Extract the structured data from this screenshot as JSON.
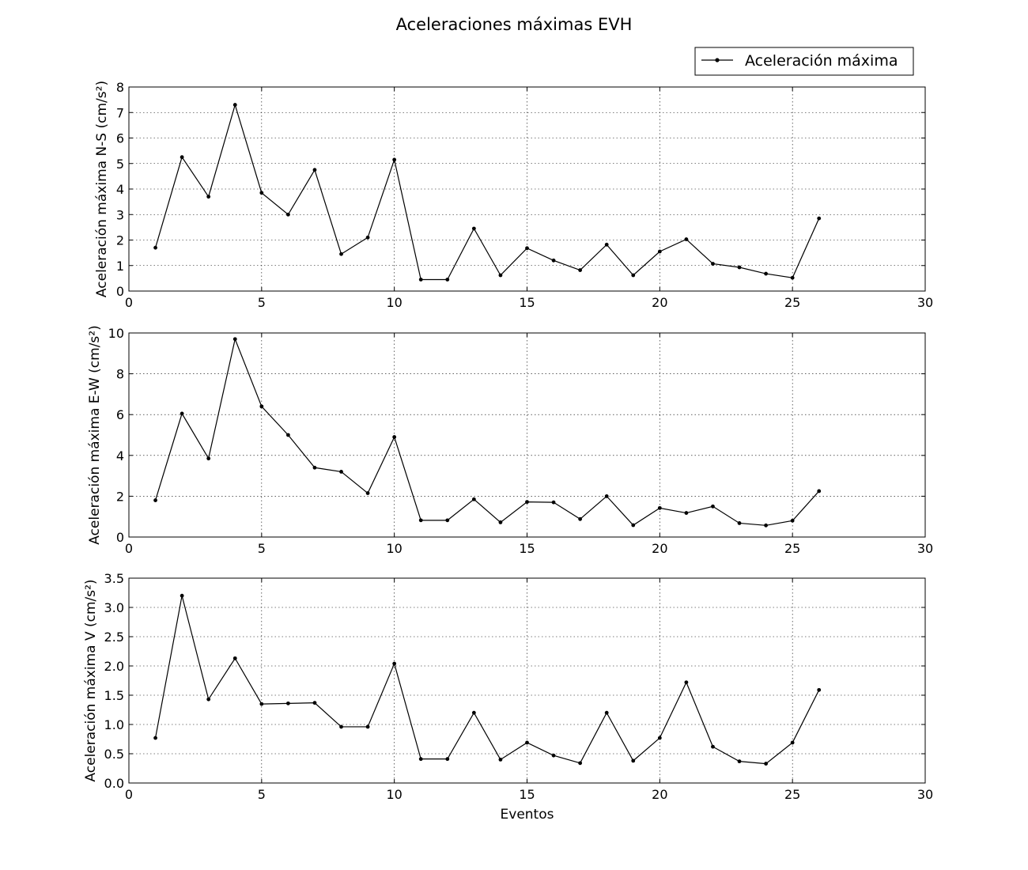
{
  "figure": {
    "title": "Aceleraciones máximas EVH",
    "legend": {
      "label": "Aceleración máxima",
      "placement": "upper-right"
    },
    "line_color": "#000000"
  },
  "chart_data": [
    {
      "type": "line",
      "ylabel": "Aceleración máxima N-S (cm/s²)",
      "xlabel": "",
      "xlim": [
        0,
        30
      ],
      "ylim": [
        0,
        8
      ],
      "xticks": [
        0,
        5,
        10,
        15,
        20,
        25,
        30
      ],
      "yticks": [
        0,
        1,
        2,
        3,
        4,
        5,
        6,
        7,
        8
      ],
      "ytick_labels": [
        "0",
        "1",
        "2",
        "3",
        "4",
        "5",
        "6",
        "7",
        "8"
      ],
      "grid": true,
      "x": [
        1,
        2,
        3,
        4,
        5,
        6,
        7,
        8,
        9,
        10,
        11,
        12,
        13,
        14,
        15,
        16,
        17,
        18,
        19,
        20,
        21,
        22,
        23,
        24,
        25,
        26
      ],
      "series": [
        {
          "name": "Aceleración máxima",
          "values": [
            1.7,
            5.25,
            3.7,
            7.3,
            3.85,
            3.0,
            4.75,
            1.45,
            2.1,
            5.15,
            0.45,
            0.45,
            2.45,
            0.62,
            1.68,
            1.2,
            0.82,
            1.82,
            0.62,
            1.55,
            2.03,
            1.07,
            0.93,
            0.68,
            0.52,
            2.85
          ]
        }
      ]
    },
    {
      "type": "line",
      "ylabel": "Aceleración máxima E-W (cm/s²)",
      "xlabel": "",
      "xlim": [
        0,
        30
      ],
      "ylim": [
        0,
        10
      ],
      "xticks": [
        0,
        5,
        10,
        15,
        20,
        25,
        30
      ],
      "yticks": [
        0,
        2,
        4,
        6,
        8,
        10
      ],
      "ytick_labels": [
        "0",
        "2",
        "4",
        "6",
        "8",
        "10"
      ],
      "grid": true,
      "x": [
        1,
        2,
        3,
        4,
        5,
        6,
        7,
        8,
        9,
        10,
        11,
        12,
        13,
        14,
        15,
        16,
        17,
        18,
        19,
        20,
        21,
        22,
        23,
        24,
        25,
        26
      ],
      "series": [
        {
          "name": "Aceleración máxima",
          "values": [
            1.8,
            6.05,
            3.85,
            9.7,
            6.4,
            5.0,
            3.4,
            3.2,
            2.15,
            4.9,
            0.82,
            0.82,
            1.85,
            0.72,
            1.72,
            1.7,
            0.88,
            2.0,
            0.58,
            1.42,
            1.18,
            1.5,
            0.68,
            0.57,
            0.8,
            2.25
          ]
        }
      ]
    },
    {
      "type": "line",
      "ylabel": "Aceleración máxima V (cm/s²)",
      "xlabel": "Eventos",
      "xlim": [
        0,
        30
      ],
      "ylim": [
        0,
        3.5
      ],
      "xticks": [
        0,
        5,
        10,
        15,
        20,
        25,
        30
      ],
      "yticks": [
        0,
        0.5,
        1.0,
        1.5,
        2.0,
        2.5,
        3.0,
        3.5
      ],
      "ytick_labels": [
        "0.0",
        "0.5",
        "1.0",
        "1.5",
        "2.0",
        "2.5",
        "3.0",
        "3.5"
      ],
      "grid": true,
      "x": [
        1,
        2,
        3,
        4,
        5,
        6,
        7,
        8,
        9,
        10,
        11,
        12,
        13,
        14,
        15,
        16,
        17,
        18,
        19,
        20,
        21,
        22,
        23,
        24,
        25,
        26
      ],
      "series": [
        {
          "name": "Aceleración máxima",
          "values": [
            0.77,
            3.2,
            1.43,
            2.13,
            1.35,
            1.36,
            1.37,
            0.96,
            0.96,
            2.04,
            0.41,
            0.41,
            1.2,
            0.4,
            0.69,
            0.47,
            0.34,
            1.2,
            0.38,
            0.77,
            1.72,
            0.62,
            0.37,
            0.33,
            0.69,
            1.59
          ]
        }
      ]
    }
  ]
}
